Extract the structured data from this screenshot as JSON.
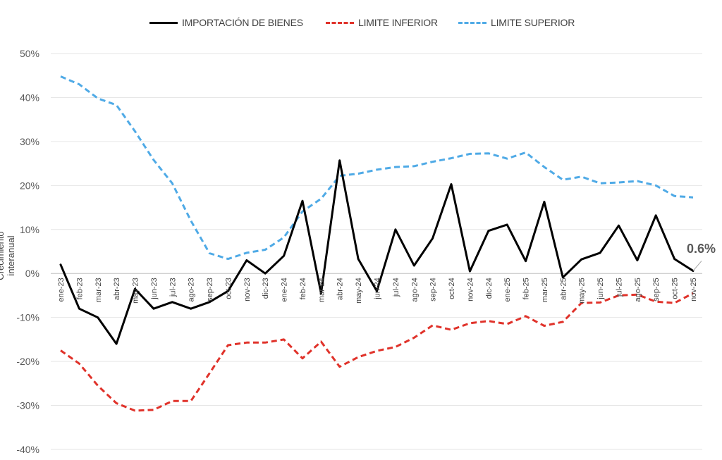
{
  "chart_data": {
    "type": "line",
    "title": "",
    "xlabel": "",
    "ylabel": "Crecimiento interanual",
    "ylim": [
      -40,
      50
    ],
    "yticks": [
      50,
      40,
      30,
      20,
      10,
      0,
      -10,
      -20,
      -30,
      -40
    ],
    "ytick_labels": [
      "50%",
      "40%",
      "30%",
      "20%",
      "10%",
      "0%",
      "-10%",
      "-20%",
      "-30%",
      "-40%"
    ],
    "grid": true,
    "legend_position": "top",
    "categories": [
      "ene-23",
      "feb-23",
      "mar-23",
      "abr-23",
      "may-23",
      "jun-23",
      "jul-23",
      "ago-23",
      "sep-23",
      "oct-23",
      "nov-23",
      "dic-23",
      "ene-24",
      "feb-24",
      "mar-24",
      "abr-24",
      "may-24",
      "jun-24",
      "jul-24",
      "ago-24",
      "sep-24",
      "oct-24",
      "nov-24",
      "dic-24",
      "ene-25",
      "feb-25",
      "mar-25",
      "abr-25",
      "may-25",
      "jun-25",
      "jul-25",
      "ago-25",
      "sep-25",
      "oct-25",
      "nov-25"
    ],
    "series": [
      {
        "name": "IMPORTACIÓN DE BIENES",
        "color": "#000000",
        "style": "solid",
        "values": [
          2,
          -8,
          -10,
          -16,
          -3.5,
          -8,
          -6.5,
          -8,
          -6.5,
          -4,
          3,
          0,
          4,
          16.5,
          -4.5,
          25.7,
          3.3,
          -4,
          10,
          1.8,
          8,
          20.3,
          0.5,
          9.7,
          11.1,
          2.8,
          16.3,
          -0.9,
          3.2,
          4.7,
          10.9,
          3,
          13.2,
          3.3,
          0.6
        ]
      },
      {
        "name": "LIMITE INFERIOR",
        "color": "#e0322a",
        "style": "dashed",
        "values": [
          -17.5,
          -20.5,
          -25.5,
          -29.5,
          -31.2,
          -31,
          -29,
          -29,
          -22.7,
          -16.3,
          -15.7,
          -15.7,
          -15,
          -19.3,
          -15.5,
          -21.2,
          -19,
          -17.6,
          -16.7,
          -14.6,
          -11.8,
          -12.8,
          -11.3,
          -10.8,
          -11.5,
          -9.7,
          -11.9,
          -11,
          -6.7,
          -6.6,
          -5,
          -4.8,
          -6.4,
          -6.7,
          -4.5
        ]
      },
      {
        "name": "LIMITE SUPERIOR",
        "color": "#4faae6",
        "style": "dashed",
        "values": [
          44.8,
          43,
          39.8,
          38.3,
          32.3,
          25.8,
          20.5,
          12,
          4.6,
          3.3,
          4.7,
          5.4,
          8.2,
          14.1,
          17,
          22.2,
          22.7,
          23.6,
          24.2,
          24.4,
          25.4,
          26.2,
          27.2,
          27.3,
          26.1,
          27.5,
          24.2,
          21.3,
          22,
          20.5,
          20.7,
          21,
          20,
          17.6,
          17.3
        ]
      }
    ],
    "annotations": [
      {
        "text": "0.6%",
        "category": "nov-25",
        "series": "IMPORTACIÓN DE BIENES",
        "value": 0.6
      }
    ]
  }
}
